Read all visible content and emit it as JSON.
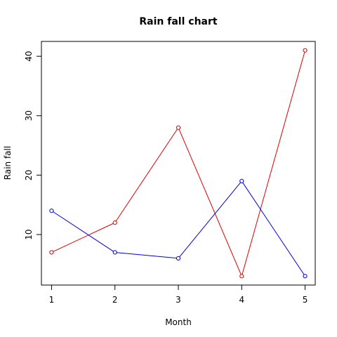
{
  "chart_data": {
    "type": "line",
    "title": "Rain fall chart",
    "xlabel": "Month",
    "ylabel": "Rain fall",
    "x": [
      1,
      2,
      3,
      4,
      5
    ],
    "xlim": [
      0.84,
      5.16
    ],
    "ylim": [
      1.5,
      42.5
    ],
    "x_ticks": [
      1,
      2,
      3,
      4,
      5
    ],
    "y_ticks": [
      10,
      20,
      30,
      40
    ],
    "grid": false,
    "legend": "none",
    "markers": "open-circle",
    "series": [
      {
        "color": "#dd0000",
        "values": [
          7,
          12,
          28,
          3,
          41
        ]
      },
      {
        "color": "#0000dd",
        "values": [
          14,
          7,
          6,
          19,
          3
        ]
      }
    ]
  }
}
